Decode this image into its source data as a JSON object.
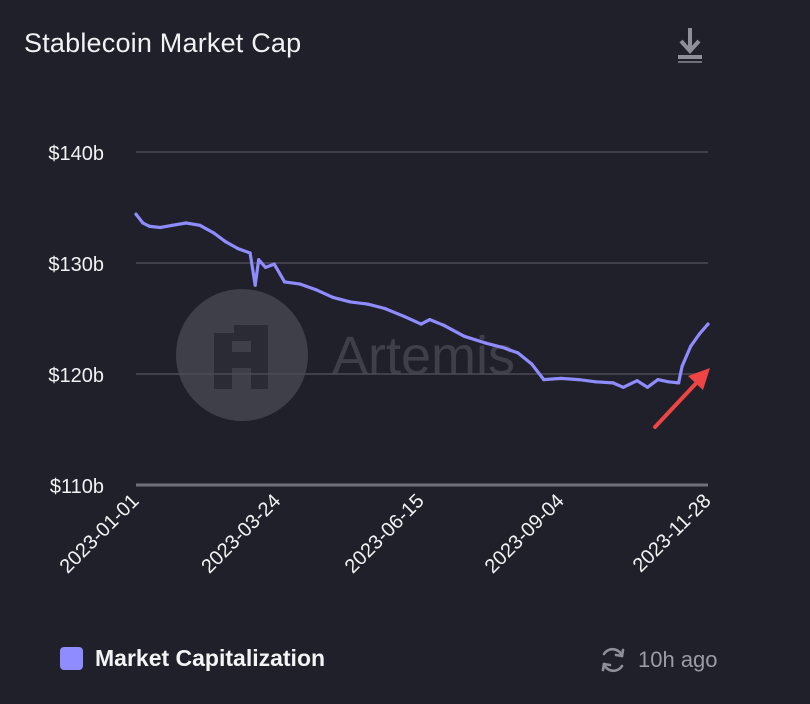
{
  "header": {
    "title": "Stablecoin Market Cap"
  },
  "watermark": {
    "text": "Artemis"
  },
  "footer": {
    "legend_label": "Market Capitalization",
    "updated_text": "10h ago"
  },
  "colors": {
    "background": "#1f2029",
    "series": "#8f8cff",
    "grid": "#4a4b55",
    "arrow": "#ef4444"
  },
  "chart_data": {
    "type": "line",
    "title": "Stablecoin Market Cap",
    "xlabel": "",
    "ylabel": "",
    "x_ticks": [
      "2023-01-01",
      "2023-03-24",
      "2023-06-15",
      "2023-09-04",
      "2023-11-28"
    ],
    "y_ticks": [
      110,
      120,
      130,
      140
    ],
    "y_tick_labels": [
      "$110b",
      "$120b",
      "$130b",
      "$140b"
    ],
    "ylim": [
      110,
      140
    ],
    "grid": true,
    "legend_position": "bottom-left",
    "series": [
      {
        "name": "Market Capitalization",
        "unit": "b",
        "points": [
          [
            "2023-01-01",
            134.4
          ],
          [
            "2023-01-05",
            133.6
          ],
          [
            "2023-01-09",
            133.3
          ],
          [
            "2023-01-15",
            133.2
          ],
          [
            "2023-01-22",
            133.4
          ],
          [
            "2023-01-30",
            133.6
          ],
          [
            "2023-02-07",
            133.4
          ],
          [
            "2023-02-15",
            132.7
          ],
          [
            "2023-02-22",
            131.9
          ],
          [
            "2023-03-01",
            131.3
          ],
          [
            "2023-03-08",
            130.9
          ],
          [
            "2023-03-11",
            128.0
          ],
          [
            "2023-03-13",
            130.3
          ],
          [
            "2023-03-17",
            129.6
          ],
          [
            "2023-03-22",
            129.9
          ],
          [
            "2023-03-28",
            128.3
          ],
          [
            "2023-04-06",
            128.1
          ],
          [
            "2023-04-15",
            127.6
          ],
          [
            "2023-04-25",
            126.9
          ],
          [
            "2023-05-05",
            126.5
          ],
          [
            "2023-05-15",
            126.3
          ],
          [
            "2023-05-25",
            125.9
          ],
          [
            "2023-06-05",
            125.2
          ],
          [
            "2023-06-15",
            124.5
          ],
          [
            "2023-06-20",
            124.9
          ],
          [
            "2023-06-28",
            124.4
          ],
          [
            "2023-07-10",
            123.4
          ],
          [
            "2023-07-22",
            122.8
          ],
          [
            "2023-08-01",
            122.4
          ],
          [
            "2023-08-10",
            121.9
          ],
          [
            "2023-08-18",
            120.9
          ],
          [
            "2023-08-25",
            119.5
          ],
          [
            "2023-09-04",
            119.6
          ],
          [
            "2023-09-14",
            119.5
          ],
          [
            "2023-09-24",
            119.3
          ],
          [
            "2023-10-04",
            119.2
          ],
          [
            "2023-10-10",
            118.8
          ],
          [
            "2023-10-18",
            119.4
          ],
          [
            "2023-10-24",
            118.8
          ],
          [
            "2023-10-30",
            119.5
          ],
          [
            "2023-11-05",
            119.3
          ],
          [
            "2023-11-11",
            119.2
          ],
          [
            "2023-11-13",
            120.7
          ],
          [
            "2023-11-18",
            122.5
          ],
          [
            "2023-11-23",
            123.6
          ],
          [
            "2023-11-28",
            124.5
          ]
        ]
      }
    ],
    "annotations": [
      {
        "type": "arrow",
        "points_to": "2023-11-28"
      }
    ]
  }
}
